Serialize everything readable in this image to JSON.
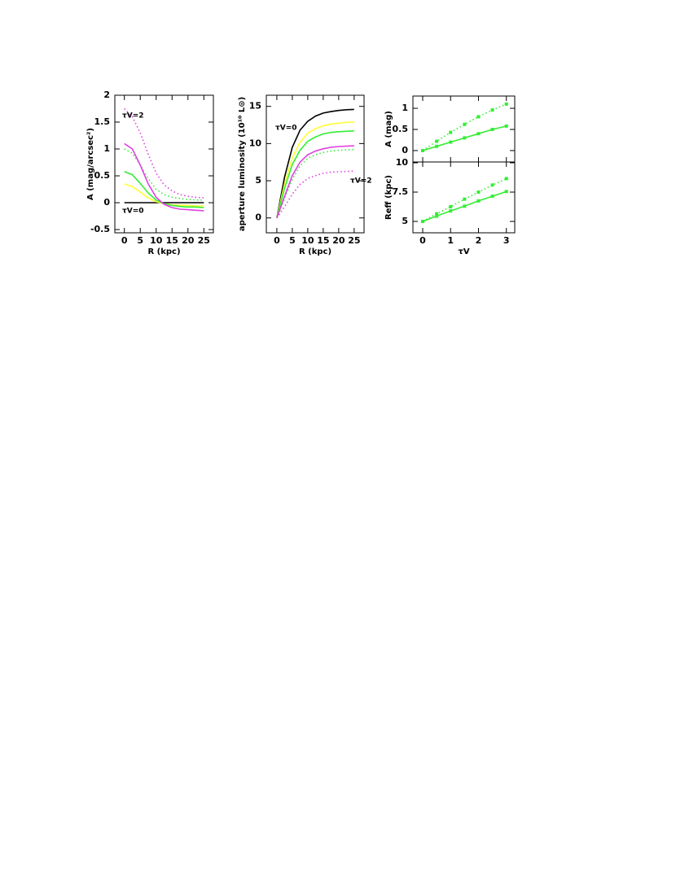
{
  "chart_data": [
    {
      "type": "line",
      "x_label": "R (kpc)",
      "y_label": "A (mag/arcsec²)",
      "xlim": [
        -3,
        28
      ],
      "ylim": [
        -0.56,
        2
      ],
      "xticks": [
        0,
        5,
        10,
        15,
        20,
        25
      ],
      "yticks": [
        -0.5,
        0,
        0.5,
        1,
        1.5,
        2
      ],
      "annotations": [
        "τV=2",
        "τV=0"
      ],
      "x": [
        0,
        2.5,
        5,
        7.5,
        10,
        12.5,
        15,
        17.5,
        20,
        22.5,
        25
      ],
      "series": [
        {
          "color": "#000000",
          "style": "solid",
          "values": [
            0,
            0,
            0,
            0,
            0,
            0,
            0,
            0,
            0,
            0,
            0
          ]
        },
        {
          "color": "#ffff33",
          "style": "solid",
          "values": [
            0.35,
            0.3,
            0.2,
            0.09,
            0.02,
            -0.02,
            -0.04,
            -0.05,
            -0.05,
            -0.06,
            -0.06
          ]
        },
        {
          "color": "#33ee33",
          "style": "solid",
          "values": [
            0.58,
            0.52,
            0.36,
            0.18,
            0.05,
            -0.02,
            -0.05,
            -0.07,
            -0.08,
            -0.08,
            -0.09
          ]
        },
        {
          "color": "#33ee33",
          "style": "dotted",
          "values": [
            1.0,
            0.92,
            0.7,
            0.45,
            0.25,
            0.15,
            0.1,
            0.08,
            0.06,
            0.05,
            0.05
          ]
        },
        {
          "color": "#e040e0",
          "style": "solid",
          "values": [
            1.1,
            1.0,
            0.7,
            0.35,
            0.1,
            -0.03,
            -0.09,
            -0.12,
            -0.13,
            -0.14,
            -0.15
          ]
        },
        {
          "color": "#e040e0",
          "style": "dotted",
          "values": [
            1.75,
            1.6,
            1.3,
            0.9,
            0.55,
            0.33,
            0.22,
            0.15,
            0.12,
            0.1,
            0.09
          ]
        }
      ]
    },
    {
      "type": "line",
      "x_label": "R (kpc)",
      "y_label": "aperture luminosity (10¹⁰ L⊙)",
      "xlim": [
        -3.4,
        28.2
      ],
      "ylim": [
        -2,
        16.5
      ],
      "xticks": [
        0,
        5,
        10,
        15,
        20,
        25
      ],
      "yticks": [
        0,
        5,
        10,
        15
      ],
      "annotations": [
        "τV=0",
        "τV=2"
      ],
      "x": [
        0,
        2.5,
        5,
        7.5,
        10,
        12.5,
        15,
        17.5,
        20,
        22.5,
        25
      ],
      "series": [
        {
          "color": "#000000",
          "style": "solid",
          "values": [
            0,
            5.5,
            9.5,
            11.8,
            13.0,
            13.7,
            14.1,
            14.3,
            14.45,
            14.55,
            14.6
          ]
        },
        {
          "color": "#ffff33",
          "style": "solid",
          "values": [
            0,
            4.6,
            8.1,
            10.2,
            11.4,
            12.0,
            12.4,
            12.6,
            12.75,
            12.85,
            12.9
          ]
        },
        {
          "color": "#33ee33",
          "style": "solid",
          "values": [
            0,
            4.0,
            7.2,
            9.1,
            10.3,
            10.9,
            11.3,
            11.5,
            11.6,
            11.65,
            11.7
          ]
        },
        {
          "color": "#33ee33",
          "style": "dotted",
          "values": [
            0,
            2.6,
            5.2,
            7.0,
            8.0,
            8.5,
            8.8,
            9.0,
            9.1,
            9.15,
            9.2
          ]
        },
        {
          "color": "#e040e0",
          "style": "solid",
          "values": [
            0,
            2.9,
            5.7,
            7.5,
            8.5,
            9.0,
            9.3,
            9.5,
            9.6,
            9.65,
            9.7
          ]
        },
        {
          "color": "#e040e0",
          "style": "dotted",
          "values": [
            0,
            1.5,
            3.2,
            4.5,
            5.3,
            5.7,
            6.0,
            6.15,
            6.2,
            6.25,
            6.3
          ]
        }
      ]
    },
    {
      "type": "line",
      "y_label": "A (mag)",
      "markers": true,
      "xlim": [
        -0.35,
        3.3
      ],
      "ylim": [
        -0.27,
        1.29
      ],
      "xticks": [
        0,
        1,
        2,
        3
      ],
      "yticks": [
        0,
        0.5,
        1
      ],
      "x": [
        0,
        0.5,
        1,
        1.5,
        2,
        2.5,
        3
      ],
      "series": [
        {
          "color": "#33ee33",
          "style": "solid",
          "values": [
            0,
            0.1,
            0.2,
            0.3,
            0.4,
            0.5,
            0.58
          ]
        },
        {
          "color": "#33ee33",
          "style": "dotted",
          "values": [
            0,
            0.22,
            0.43,
            0.62,
            0.8,
            0.96,
            1.1
          ]
        }
      ]
    },
    {
      "type": "line",
      "x_label": "τV",
      "y_label": "Reff (kpc)",
      "markers": true,
      "xlim": [
        -0.35,
        3.3
      ],
      "ylim": [
        4.03,
        10.07
      ],
      "xticks": [
        0,
        1,
        2,
        3
      ],
      "yticks": [
        5,
        7.5,
        10
      ],
      "x": [
        0,
        0.5,
        1,
        1.5,
        2,
        2.5,
        3
      ],
      "series": [
        {
          "color": "#33ee33",
          "style": "solid",
          "values": [
            5,
            5.45,
            5.9,
            6.3,
            6.75,
            7.15,
            7.55
          ]
        },
        {
          "color": "#33ee33",
          "style": "dotted",
          "values": [
            5,
            5.65,
            6.25,
            6.9,
            7.5,
            8.1,
            8.65
          ]
        }
      ]
    }
  ]
}
